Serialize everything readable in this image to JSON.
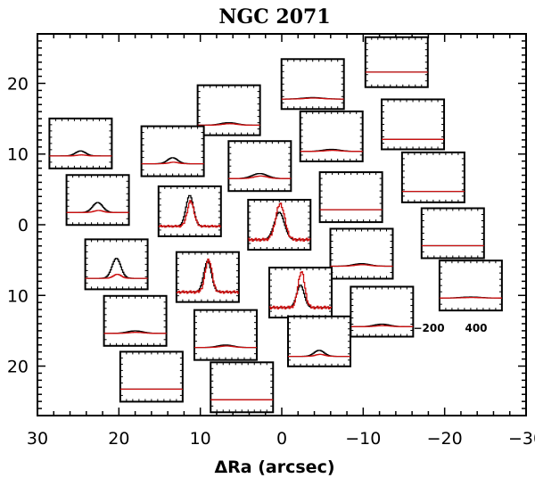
{
  "chart_data": {
    "type": "line",
    "title": "NGC 2071",
    "xlabel": "ΔRa (arcsec)",
    "ylabel": "",
    "xlim": [
      30,
      -30
    ],
    "ylim": [
      -27,
      27
    ],
    "x_ticks": [
      30,
      20,
      10,
      0,
      -10,
      -20,
      -30
    ],
    "x_tick_labels": [
      "30",
      "20",
      "10",
      "0",
      "−10",
      "−20",
      "−30"
    ],
    "y_ticks": [
      20,
      10,
      0,
      -10,
      -20
    ],
    "y_tick_labels": [
      "20",
      "10",
      "0",
      "10",
      "20"
    ],
    "inset_x_ticks": [
      -200,
      400
    ],
    "inset_x_tick_labels": [
      "−200",
      "400"
    ],
    "series_names": [
      "black",
      "red"
    ],
    "series_colors": [
      "#000000",
      "#cc1111"
    ],
    "panels": [
      {
        "x": -14.1,
        "y": 23.0,
        "base": 0.3,
        "black_peak": 0.0,
        "red_peak": 0.0,
        "width": 0.18
      },
      {
        "x": -3.8,
        "y": 19.9,
        "base": 0.2,
        "black_peak": 0.03,
        "red_peak": 0.02,
        "width": 0.15
      },
      {
        "x": 6.5,
        "y": 16.2,
        "base": 0.2,
        "black_peak": 0.05,
        "red_peak": 0.03,
        "width": 0.13
      },
      {
        "x": -16.1,
        "y": 14.2,
        "base": 0.2,
        "black_peak": 0.0,
        "red_peak": 0.0,
        "width": 0.15
      },
      {
        "x": -6.1,
        "y": 12.5,
        "base": 0.2,
        "black_peak": 0.04,
        "red_peak": 0.02,
        "width": 0.13
      },
      {
        "x": 24.7,
        "y": 11.5,
        "base": 0.25,
        "black_peak": 0.1,
        "red_peak": 0.02,
        "width": 0.08
      },
      {
        "x": 13.4,
        "y": 10.4,
        "base": 0.25,
        "black_peak": 0.12,
        "red_peak": 0.03,
        "width": 0.08
      },
      {
        "x": 2.7,
        "y": 8.3,
        "base": 0.25,
        "black_peak": 0.1,
        "red_peak": 0.05,
        "width": 0.12
      },
      {
        "x": -18.6,
        "y": 6.7,
        "base": 0.22,
        "black_peak": 0.0,
        "red_peak": 0.0,
        "width": 0.15
      },
      {
        "x": -8.5,
        "y": 3.9,
        "base": 0.25,
        "black_peak": 0.0,
        "red_peak": 0.0,
        "width": 0.15
      },
      {
        "x": 22.6,
        "y": 3.5,
        "base": 0.25,
        "black_peak": 0.2,
        "red_peak": 0.04,
        "width": 0.08
      },
      {
        "x": 11.3,
        "y": 1.9,
        "base": 0.2,
        "black_peak": 0.62,
        "red_peak": 0.5,
        "width": 0.06
      },
      {
        "x": 0.3,
        "y": 0.0,
        "base": 0.2,
        "black_peak": 0.55,
        "red_peak": 0.72,
        "width": 0.08
      },
      {
        "x": -21.0,
        "y": -1.2,
        "base": 0.25,
        "black_peak": 0.0,
        "red_peak": 0.0,
        "width": 0.15
      },
      {
        "x": -9.8,
        "y": -4.1,
        "base": 0.25,
        "black_peak": 0.05,
        "red_peak": 0.03,
        "width": 0.13
      },
      {
        "x": 20.3,
        "y": -5.6,
        "base": 0.22,
        "black_peak": 0.4,
        "red_peak": 0.08,
        "width": 0.07
      },
      {
        "x": 9.1,
        "y": -7.4,
        "base": 0.2,
        "black_peak": 0.62,
        "red_peak": 0.65,
        "width": 0.06
      },
      {
        "x": -2.3,
        "y": -9.6,
        "base": 0.2,
        "black_peak": 0.45,
        "red_peak": 0.72,
        "width": 0.06
      },
      {
        "x": -23.2,
        "y": -8.6,
        "base": 0.25,
        "black_peak": 0.02,
        "red_peak": 0.01,
        "width": 0.15
      },
      {
        "x": -12.3,
        "y": -12.3,
        "base": 0.2,
        "black_peak": 0.05,
        "red_peak": 0.02,
        "width": 0.12
      },
      {
        "x": 18.0,
        "y": -13.6,
        "base": 0.25,
        "black_peak": 0.05,
        "red_peak": 0.02,
        "width": 0.12
      },
      {
        "x": 6.9,
        "y": -15.6,
        "base": 0.25,
        "black_peak": 0.05,
        "red_peak": 0.03,
        "width": 0.12
      },
      {
        "x": -4.6,
        "y": -16.5,
        "base": 0.2,
        "black_peak": 0.12,
        "red_peak": 0.04,
        "width": 0.08
      },
      {
        "x": 16.0,
        "y": -21.5,
        "base": 0.25,
        "black_peak": 0.0,
        "red_peak": 0.0,
        "width": 0.15
      },
      {
        "x": 4.9,
        "y": -23.0,
        "base": 0.25,
        "black_peak": 0.0,
        "red_peak": 0.0,
        "width": 0.15
      }
    ]
  }
}
